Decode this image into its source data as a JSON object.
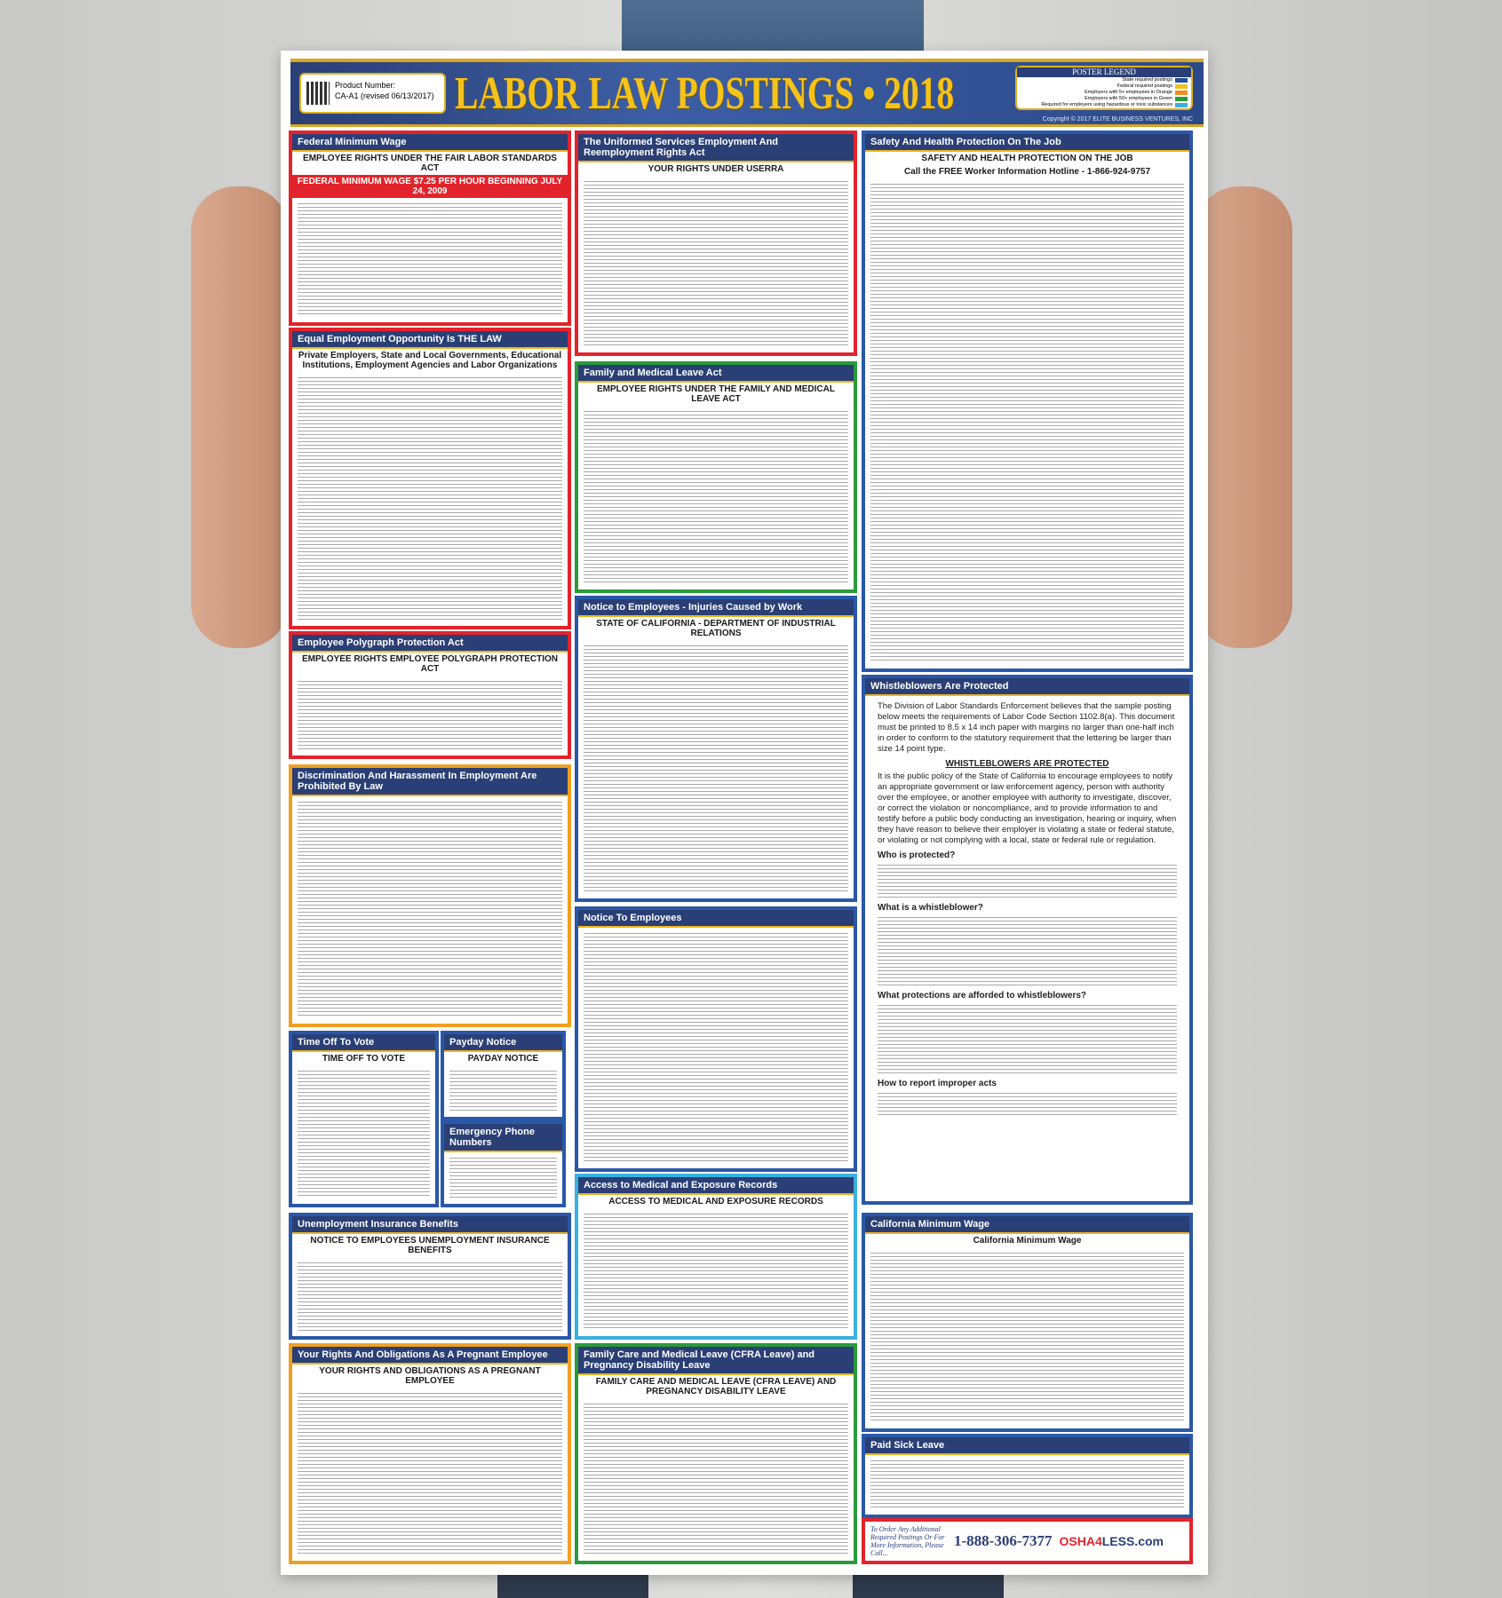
{
  "header": {
    "product_label": "Product Number:",
    "product_number": "CA-A1 (revised 06/13/2017)",
    "title": "LABOR LAW POSTINGS • 2018",
    "legend_title": "POSTER LEGEND",
    "legend_items": [
      "State required postings",
      "Federal required postings",
      "Employers with 5+ employees in Orange",
      "Employers with 50+ employees in Green",
      "Required for employers using hazardous or toxic substances"
    ],
    "legend_colors": [
      "#1f4fa0",
      "#f0c020",
      "#f08a20",
      "#2a9a3a",
      "#3ab0e0"
    ],
    "copyright": "Copyright © 2017 ELITE BUSINESS VENTURES, INC"
  },
  "sections": {
    "fmw": {
      "title": "Federal Minimum Wage",
      "sub": "EMPLOYEE RIGHTS UNDER THE FAIR LABOR STANDARDS ACT",
      "red": "FEDERAL MINIMUM WAGE $7.25 PER HOUR BEGINNING JULY 24, 2009"
    },
    "eeo": {
      "title": "Equal Employment Opportunity Is THE LAW",
      "sub": "Private Employers, State and Local Governments, Educational Institutions, Employment Agencies and Labor Organizations"
    },
    "poly": {
      "title": "Employee Polygraph Protection Act",
      "sub": "EMPLOYEE RIGHTS EMPLOYEE POLYGRAPH PROTECTION ACT"
    },
    "disc": {
      "title": "Discrimination And Harassment In Employment Are Prohibited By Law"
    },
    "vote": {
      "title": "Time Off To Vote",
      "sub": "TIME OFF TO VOTE"
    },
    "payday": {
      "title": "Payday Notice",
      "sub": "PAYDAY NOTICE"
    },
    "emerg": {
      "title": "Emergency Phone Numbers"
    },
    "unemp": {
      "title": "Unemployment Insurance Benefits",
      "sub": "NOTICE TO EMPLOYEES UNEMPLOYMENT INSURANCE BENEFITS"
    },
    "preg": {
      "title": "Your Rights And Obligations As A Pregnant Employee",
      "sub": "YOUR RIGHTS AND OBLIGATIONS AS A PREGNANT EMPLOYEE"
    },
    "userra": {
      "title": "The Uniformed Services Employment And Reemployment Rights Act",
      "sub": "YOUR RIGHTS UNDER USERRA"
    },
    "fmla": {
      "title": "Family and Medical Leave Act",
      "sub": "EMPLOYEE RIGHTS UNDER THE FAMILY AND MEDICAL LEAVE ACT"
    },
    "inj": {
      "title": "Notice to Employees - Injuries Caused by Work",
      "sub": "STATE OF CALIFORNIA - DEPARTMENT OF INDUSTRIAL RELATIONS"
    },
    "nte": {
      "title": "Notice To Employees"
    },
    "acc": {
      "title": "Access to Medical and Exposure Records",
      "sub": "ACCESS TO MEDICAL AND EXPOSURE RECORDS"
    },
    "cfra": {
      "title": "Family Care and Medical Leave (CFRA Leave) and Pregnancy Disability Leave",
      "sub": "FAMILY CARE AND MEDICAL LEAVE (CFRA LEAVE) AND PREGNANCY DISABILITY LEAVE"
    },
    "safety": {
      "title": "Safety And Health Protection On The Job",
      "sub": "SAFETY AND HEALTH PROTECTION ON THE JOB",
      "hotline": "Call the FREE Worker Information Hotline - 1-866-924-9757"
    },
    "cmw": {
      "title": "California Minimum Wage",
      "sub": "California Minimum Wage"
    },
    "psl": {
      "title": "Paid Sick Leave"
    }
  },
  "whistle": {
    "title": "Whistleblowers Are Protected",
    "intro": "The Division of Labor Standards Enforcement believes that the sample posting below meets the requirements of Labor Code Section 1102.8(a). This document must be printed to 8.5 x 14 inch paper with margins no larger than one-half inch in order to conform to the statutory requirement that the lettering be larger than size 14 point type.",
    "heading": "WHISTLEBLOWERS ARE PROTECTED",
    "p1": "It is the public policy of the State of California to encourage employees to notify an appropriate government or law enforcement agency, person with authority over the employee, or another employee with authority to investigate, discover, or correct the violation or noncompliance, and to provide information to and testify before a public body conducting an investigation, hearing or inquiry, when they have reason to believe their employer is violating a state or federal statute, or violating or not complying with a local, state or federal rule or regulation.",
    "h2": "Who is protected?",
    "h3": "What is a whistleblower?",
    "h4": "What protections are afforded to whistleblowers?",
    "h5": "How to report improper acts"
  },
  "footer": {
    "order": "To Order Any Additional Required Postings Or For More Information, Please Call...",
    "phone": "1-888-306-7377",
    "brand_a": "OSHA",
    "brand_b": "4",
    "brand_c": "LESS.com"
  }
}
